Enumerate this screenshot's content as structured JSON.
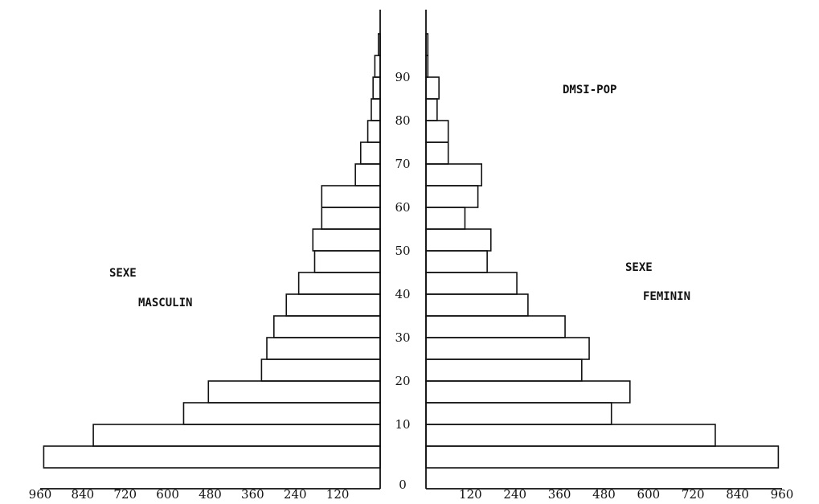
{
  "chart_data": {
    "type": "bar",
    "title": "DMSI-POP",
    "left_label": [
      "SEXE",
      "MASCULIN"
    ],
    "right_label": [
      "SEXE",
      "FEMININ"
    ],
    "x_ticks_left": [
      "960",
      "840",
      "720",
      "600",
      "480",
      "360",
      "240",
      "120"
    ],
    "x_ticks_right": [
      "120",
      "240",
      "360",
      "480",
      "600",
      "720",
      "840",
      "960"
    ],
    "x_range": [
      0,
      960
    ],
    "age_ticks": [
      "0",
      "10",
      "20",
      "30",
      "40",
      "50",
      "60",
      "70",
      "80",
      "90"
    ],
    "bin_width": 5,
    "series": [
      {
        "name": "SEXE MASCULIN",
        "age_start": [
          0,
          5,
          10,
          15,
          20,
          25,
          30,
          35,
          40,
          45,
          50,
          55,
          60,
          65,
          70,
          75,
          80,
          85,
          90,
          95
        ],
        "values": [
          950,
          810,
          555,
          485,
          335,
          320,
          300,
          265,
          230,
          185,
          190,
          165,
          165,
          70,
          55,
          35,
          25,
          20,
          15,
          5
        ]
      },
      {
        "name": "SEXE FEMININ",
        "age_start": [
          0,
          5,
          10,
          15,
          20,
          25,
          30,
          35,
          40,
          45,
          50,
          55,
          60,
          65,
          70,
          75,
          80,
          85,
          90,
          95
        ],
        "values": [
          950,
          780,
          500,
          550,
          420,
          440,
          375,
          275,
          245,
          165,
          175,
          105,
          140,
          150,
          60,
          60,
          30,
          35,
          5,
          5
        ]
      }
    ]
  }
}
